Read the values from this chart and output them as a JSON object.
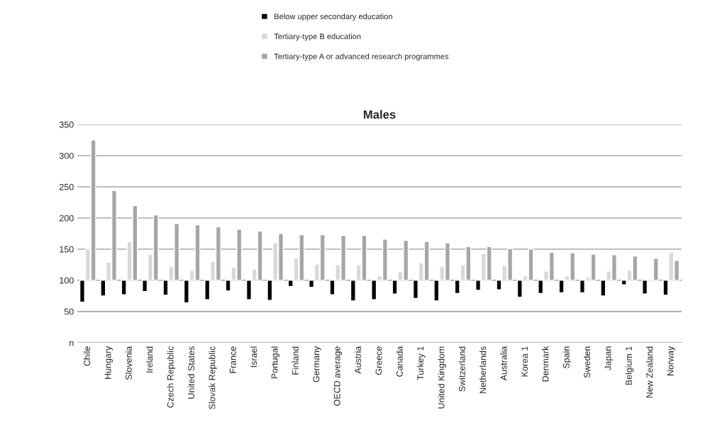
{
  "chart_data": {
    "type": "bar",
    "title": "Males",
    "categories": [
      "Chile",
      "Hungary",
      "Slovenia",
      "Ireland",
      "Czech Republic",
      "United States",
      "Slovak Republic",
      "France",
      "Israel",
      "Portugal",
      "Finland",
      "Germany",
      "OECD average",
      "Austria",
      "Greece",
      "Canada",
      "Turkey 1",
      "United Kingdom",
      "Switzerland",
      "Netherlands",
      "Australia",
      "Korea 1",
      "Denmark",
      "Spain",
      "Sweden",
      "Japan",
      "Belgium 1",
      "New Zealand",
      "Norway"
    ],
    "series": [
      {
        "name": "Below upper secondary education",
        "color": "#000000",
        "base": [
          100,
          100,
          100,
          100,
          100,
          100,
          100,
          100,
          100,
          100,
          100,
          100,
          100,
          100,
          100,
          100,
          100,
          100,
          100,
          100,
          100,
          100,
          100,
          100,
          100,
          100,
          100,
          100,
          100
        ],
        "values": [
          -35,
          -25,
          -23,
          -18,
          -24,
          -36,
          -31,
          -17,
          -31,
          -32,
          -10,
          -11,
          -23,
          -33,
          -31,
          -22,
          -29,
          -33,
          -21,
          -16,
          -15,
          -27,
          -21,
          -20,
          -20,
          -25,
          -7,
          -22,
          -24
        ]
      },
      {
        "name": "Tertiary-type B education",
        "color": "#d9d9d9",
        "base": [
          100,
          100,
          100,
          100,
          100,
          100,
          100,
          100,
          100,
          100,
          100,
          100,
          100,
          100,
          100,
          100,
          100,
          100,
          100,
          100,
          100,
          100,
          100,
          100,
          100,
          100,
          100,
          100,
          100
        ],
        "values": [
          50,
          29,
          62,
          42,
          22,
          16,
          30,
          21,
          18,
          60,
          36,
          26,
          25,
          25,
          7,
          14,
          28,
          22,
          24,
          43,
          24,
          7,
          15,
          7,
          5,
          15,
          16,
          1,
          45
        ]
      },
      {
        "name": "Tertiary-type A or advanced research programmes",
        "color": "#a6a6a6",
        "base": [
          100,
          100,
          100,
          100,
          100,
          100,
          100,
          100,
          100,
          100,
          100,
          100,
          100,
          100,
          100,
          100,
          100,
          100,
          100,
          100,
          100,
          100,
          100,
          100,
          100,
          100,
          100,
          100,
          100
        ],
        "values": [
          225,
          144,
          120,
          105,
          91,
          89,
          86,
          82,
          79,
          75,
          73,
          73,
          72,
          72,
          66,
          64,
          62,
          60,
          54,
          54,
          51,
          50,
          45,
          44,
          42,
          41,
          39,
          35,
          32
        ]
      }
    ],
    "ylim": [
      0,
      350
    ],
    "yticks": [
      {
        "value": 0,
        "label": "n"
      },
      50,
      100,
      150,
      200,
      250,
      300,
      350
    ],
    "grid": "y",
    "legend": "top"
  }
}
